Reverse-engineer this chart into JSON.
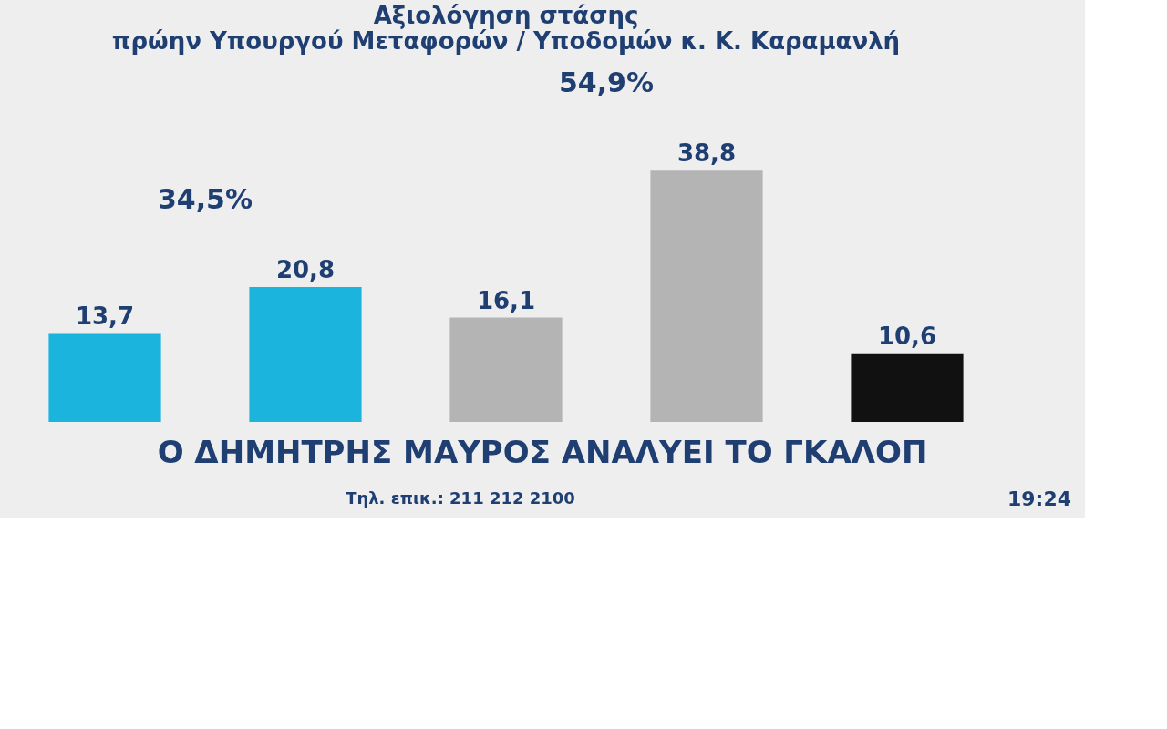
{
  "chart_data": {
    "type": "bar",
    "title": [
      "Αξιολόγηση στάσης",
      "πρώην Υπουργού Μεταφορών / Υποδομών κ. Κ. Καραμανλή"
    ],
    "categories": [
      null,
      null,
      null,
      null,
      null
    ],
    "values": [
      13.7,
      20.8,
      16.1,
      38.8,
      10.6
    ],
    "colors": [
      "#1ab4dc",
      "#1ab4dc",
      "#b4b4b4",
      "#b4b4b4",
      "#111111"
    ],
    "value_labels": [
      "13,7",
      "20,8",
      "16,1",
      "38,8",
      "10,6"
    ],
    "annotations": [
      "34,5%",
      "54,9%",
      "Ο ΔΗΜΗΤΡΗΣ ΜΑΥΡΟΣ ΑΝΑΛΥΕΙ ΤΟ ΓΚΑΛΟΠ",
      "Τηλ. επικ.: 211 212 2100",
      "19:24"
    ],
    "data_labels": false
  }
}
